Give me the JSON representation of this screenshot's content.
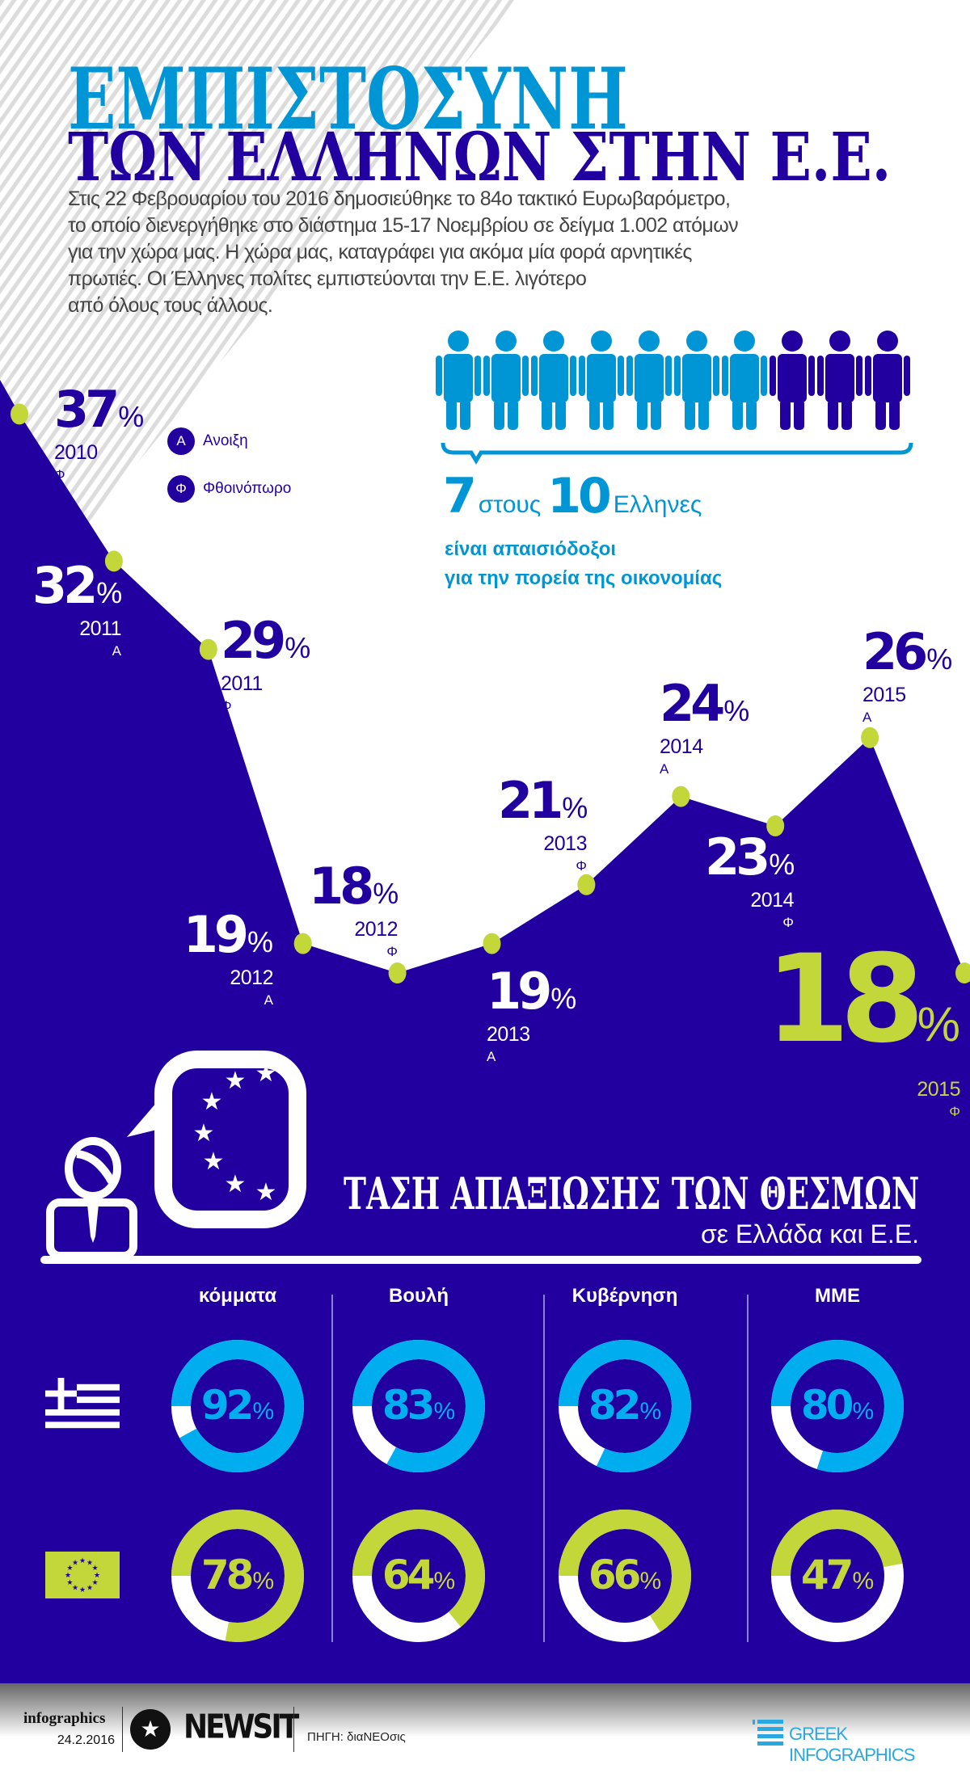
{
  "header": {
    "title_line1": "ΕΜΠΙΣΤΟΣΥΝΗ",
    "title_line2": "ΤΩΝ ΕΛΛΗΝΩΝ ΣΤΗΝ Ε.Ε.",
    "intro_lines": [
      "Στις 22 Φεβρουαρίου του 2016 δημοσιεύθηκε το 84ο τακτικό Ευρωβαρόμετρο,",
      "το οποίο διενεργήθηκε στο διάστημα 15-17 Νοεμβρίου σε δείγμα 1.002 ατόμων",
      "για την χώρα μας. Η χώρα μας, καταγράφει για ακόμα μία φορά αρνητικές",
      "πρωτιές. Οι Έλληνες πολίτες εμπιστεύονται την Ε.Ε. λιγότερο",
      "από όλους τους άλλους."
    ]
  },
  "legend": {
    "spring": {
      "letter": "Α",
      "label": "Ανοιξη"
    },
    "autumn": {
      "letter": "Φ",
      "label": "Φθοινόπωρο"
    }
  },
  "pessimism": {
    "count": "7",
    "of_word": "στους",
    "total": "10",
    "people_word": "Ελληνες",
    "line1": "είναι απαισιόδοξοι",
    "line2": "για την πορεία της οικονομίας",
    "pessimistic_share": 7,
    "people_total": 10
  },
  "colors": {
    "navy": "#2200a0",
    "light_blue": "#0096d6",
    "cyan": "#00aeef",
    "lime": "#c3d63a"
  },
  "chart_data": [
    {
      "type": "area",
      "unit": "%",
      "points": [
        {
          "year": "2010",
          "season": "Φ",
          "value": 37
        },
        {
          "year": "2011",
          "season": "Α",
          "value": 32
        },
        {
          "year": "2011",
          "season": "Φ",
          "value": 29
        },
        {
          "year": "2012",
          "season": "Α",
          "value": 19
        },
        {
          "year": "2012",
          "season": "Φ",
          "value": 18
        },
        {
          "year": "2013",
          "season": "Α",
          "value": 19
        },
        {
          "year": "2013",
          "season": "Φ",
          "value": 21
        },
        {
          "year": "2014",
          "season": "Α",
          "value": 24
        },
        {
          "year": "2014",
          "season": "Φ",
          "value": 23
        },
        {
          "year": "2015",
          "season": "Α",
          "value": 26
        },
        {
          "year": "2015",
          "season": "Φ",
          "value": 18
        }
      ]
    },
    {
      "type": "donut",
      "title": "ΤΑΣΗ ΑΠΑΞΙΩΣΗΣ ΤΩΝ ΘΕΣΜΩΝ",
      "subtitle": "σε Ελλάδα και Ε.Ε.",
      "unit": "%",
      "categories": [
        "κόμματα",
        "Βουλή",
        "Κυβέρνηση",
        "ΜΜΕ"
      ],
      "series": [
        {
          "flag": "greece-flag",
          "color": "#00aeef",
          "values": [
            92,
            83,
            82,
            80
          ]
        },
        {
          "flag": "eu-flag",
          "color": "#c3d63a",
          "values": [
            78,
            64,
            66,
            47
          ]
        }
      ]
    }
  ],
  "footer": {
    "brand": "infographics",
    "date": "24.2.2016",
    "logo_text": "NEWSIT",
    "source": "ΠΗΓΗ: διαΝΕΟσις",
    "partner": "GREEK INFOGRAPHICS"
  }
}
